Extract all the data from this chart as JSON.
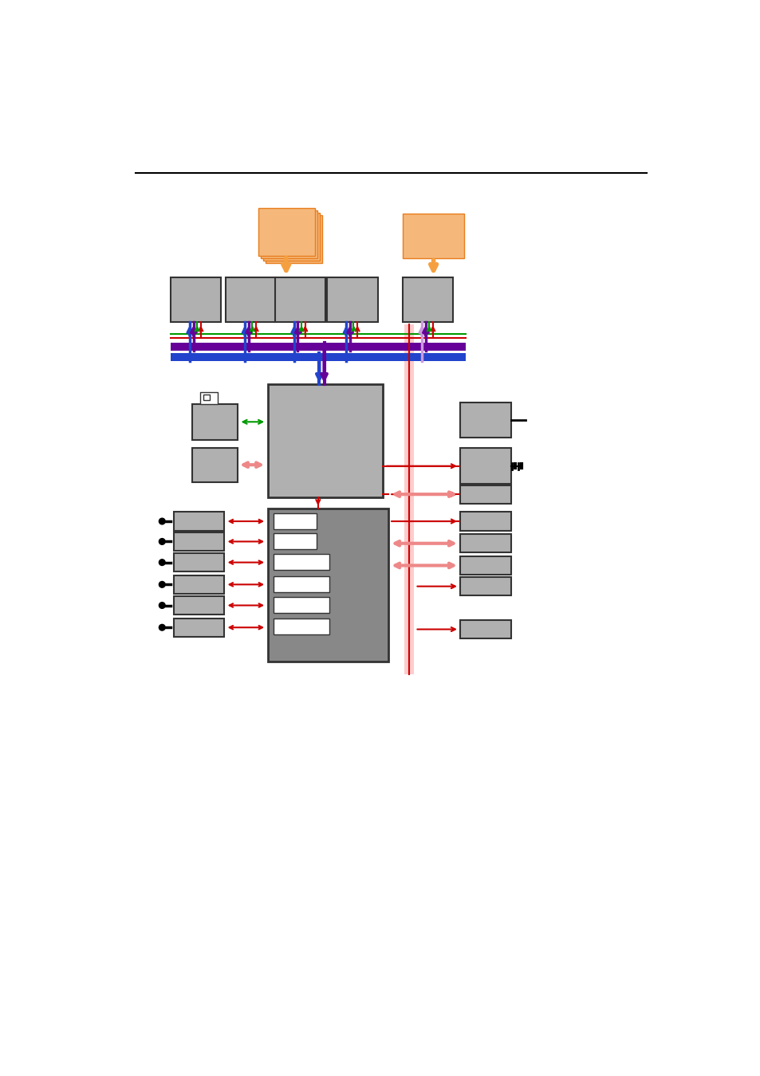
{
  "fig_width": 9.54,
  "fig_height": 13.5,
  "dpi": 100,
  "bg_color": "#ffffff",
  "orange_fill": "#f5b87a",
  "orange_edge": "#e87d1e",
  "gray_fill": "#b0b0b0",
  "gray_edge": "#333333",
  "dark_gray_fill": "#888888",
  "white_fill": "#ffffff",
  "blue_color": "#2244cc",
  "purple_color": "#660099",
  "red_color": "#cc0000",
  "green_color": "#009900",
  "pink_color": "#ffaaaa",
  "pink_arrow_color": "#ee8888"
}
